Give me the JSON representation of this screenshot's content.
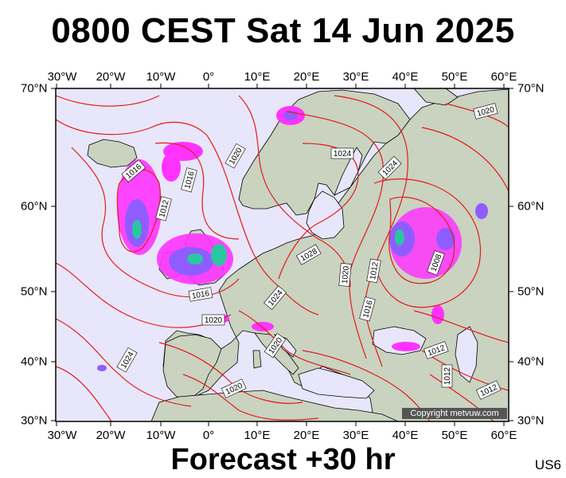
{
  "title": "0800 CEST Sat 14 Jun 2025",
  "subtitle": "Forecast +30 hr",
  "model_tag": "US6",
  "copyright": "Copyright metvuw.com",
  "lon_labels": [
    "30°W",
    "20°W",
    "10°W",
    "0°",
    "10°E",
    "20°E",
    "30°E",
    "40°E",
    "50°E",
    "60°E"
  ],
  "lat_labels": [
    "70°N",
    "60°N",
    "50°N",
    "40°N",
    "30°N"
  ],
  "isobar_labels": [
    "1020",
    "1020",
    "1016",
    "1016",
    "1012",
    "1024",
    "1024",
    "1028",
    "1020",
    "1024",
    "1016",
    "1020",
    "1020",
    "1024",
    "1012",
    "1008",
    "1016",
    "1012",
    "1012",
    "1020",
    "1012"
  ],
  "colors": {
    "ocean": "#e8e6fa",
    "land": "#c9d3c0",
    "isobar": "#e41a1c",
    "precip_light": "#ff33ff",
    "precip_mid": "#8f5cff",
    "precip_heavy": "#29c7a0"
  }
}
